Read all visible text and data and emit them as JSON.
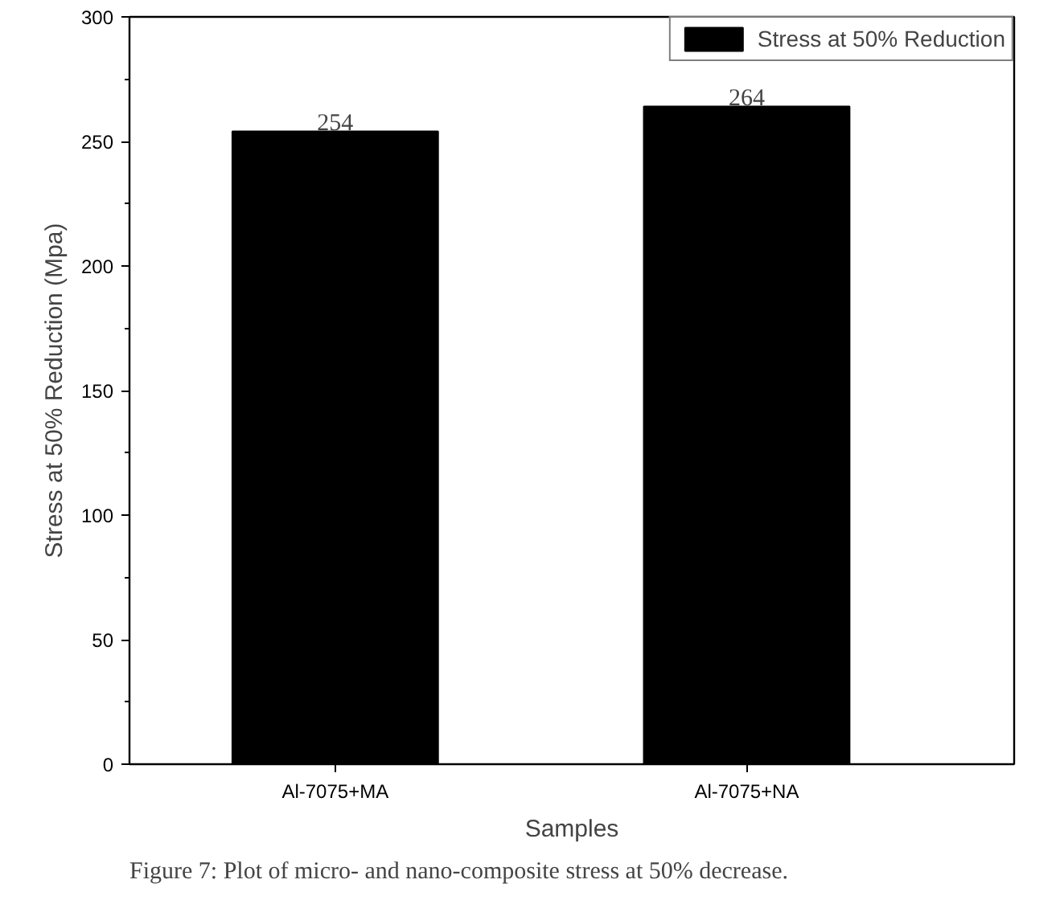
{
  "chart_data": {
    "type": "bar",
    "categories": [
      "Al-7075+MA",
      "Al-7075+NA"
    ],
    "series": [
      {
        "name": "Stress at 50% Reduction",
        "color": "#000000",
        "values": [
          254,
          264
        ]
      }
    ],
    "xlabel": "Samples",
    "ylabel": "Stress at 50% Reduction (Mpa)",
    "ylim": [
      0,
      300
    ],
    "yticks": [
      0,
      50,
      100,
      150,
      200,
      250,
      300
    ],
    "data_labels": true,
    "legend": "top right",
    "grid": false,
    "annotations": [
      "Figure 7: Plot of micro- and nano-composite stress at 50% decrease."
    ]
  }
}
